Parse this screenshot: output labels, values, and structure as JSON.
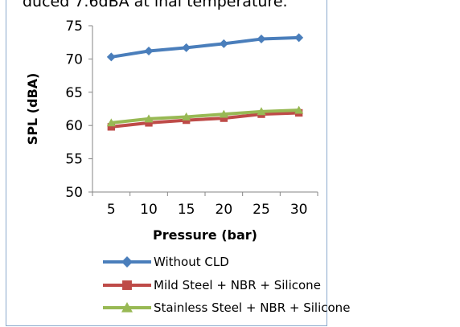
{
  "page": {
    "top_text": "duced 7.6dBA at inal temperature."
  },
  "chart_data": {
    "type": "line",
    "xlabel": "Pressure (bar)",
    "ylabel": "SPL (dBA)",
    "x": [
      5,
      10,
      15,
      20,
      25,
      30
    ],
    "ylim": [
      50,
      75
    ],
    "yticks": [
      50,
      55,
      60,
      65,
      70,
      75
    ],
    "grid": false,
    "legend_position": "bottom",
    "series": [
      {
        "name": "Without CLD",
        "values": [
          70.3,
          71.2,
          71.7,
          72.3,
          73.0,
          73.2
        ],
        "color": "#4a7ebb",
        "marker": "diamond"
      },
      {
        "name": "Mild Steel + NBR + Silicone",
        "values": [
          59.8,
          60.4,
          60.8,
          61.1,
          61.7,
          61.9
        ],
        "color": "#be4b48",
        "marker": "square"
      },
      {
        "name": "Stainless Steel + NBR + Silicone",
        "values": [
          60.4,
          61.0,
          61.3,
          61.7,
          62.1,
          62.3
        ],
        "color": "#98b954",
        "marker": "triangle"
      }
    ]
  }
}
